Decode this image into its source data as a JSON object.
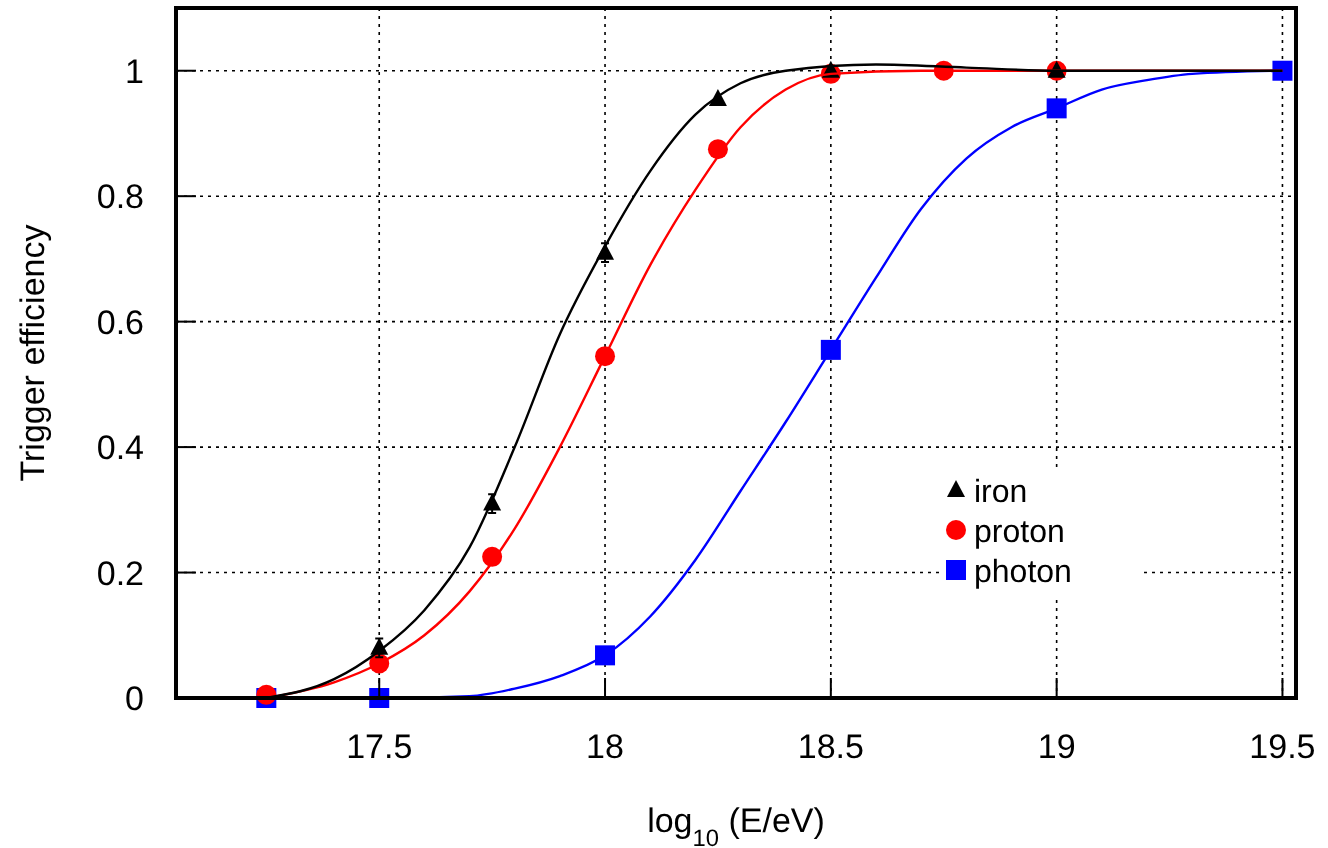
{
  "chart_data": {
    "type": "scatter",
    "xlabel": "log$_{10}$ (E/eV)",
    "ylabel": "Trigger efficiency",
    "xlim": [
      17.05,
      19.53
    ],
    "ylim": [
      0,
      1.1
    ],
    "xticks": [
      17.5,
      18,
      18.5,
      19,
      19.5
    ],
    "yticks": [
      0,
      0.2,
      0.4,
      0.6,
      0.8,
      1
    ],
    "grid": true,
    "legend": "bottom right",
    "series": [
      {
        "type": "line",
        "color": "#000000",
        "marker": "none",
        "x": [
          17.25,
          17.4,
          17.5,
          17.6,
          17.7,
          17.8,
          17.9,
          18.0,
          18.1,
          18.2,
          18.3,
          18.4,
          18.6,
          18.8,
          19.0,
          19.5
        ],
        "values": [
          0.0,
          0.03,
          0.075,
          0.14,
          0.24,
          0.4,
          0.58,
          0.72,
          0.84,
          0.93,
          0.98,
          1.0,
          1.01,
          1.005,
          1.0,
          1.0
        ]
      },
      {
        "type": "line",
        "color": "#ff0000",
        "marker": "none",
        "x": [
          17.25,
          17.4,
          17.5,
          17.6,
          17.7,
          17.8,
          17.9,
          18.0,
          18.1,
          18.2,
          18.3,
          18.4,
          18.5,
          18.7,
          19.5
        ],
        "values": [
          0.0,
          0.025,
          0.055,
          0.1,
          0.17,
          0.27,
          0.4,
          0.545,
          0.69,
          0.81,
          0.91,
          0.97,
          0.995,
          1.0,
          1.0
        ]
      },
      {
        "type": "line",
        "color": "#0000ff",
        "marker": "none",
        "x": [
          17.25,
          17.5,
          17.7,
          17.8,
          17.9,
          18.0,
          18.1,
          18.2,
          18.3,
          18.4,
          18.5,
          18.6,
          18.7,
          18.8,
          18.9,
          19.0,
          19.1,
          19.2,
          19.3,
          19.5
        ],
        "values": [
          0,
          0,
          0.003,
          0.015,
          0.035,
          0.068,
          0.13,
          0.22,
          0.33,
          0.44,
          0.555,
          0.67,
          0.78,
          0.86,
          0.91,
          0.94,
          0.97,
          0.985,
          0.995,
          1.0
        ]
      },
      {
        "name": "iron",
        "color": "#000000",
        "marker": "triangle",
        "x": [
          17.5,
          17.75,
          18,
          18.25,
          18.5,
          19
        ],
        "values": [
          0.08,
          0.31,
          0.71,
          0.955,
          1.0,
          1.0
        ],
        "errors": [
          0.015,
          0.015,
          0.015,
          null,
          null,
          null
        ]
      },
      {
        "name": "proton",
        "color": "#ff0000",
        "marker": "circle",
        "x": [
          17.25,
          17.5,
          17.75,
          18,
          18.25,
          18.5,
          18.75,
          19
        ],
        "values": [
          0.005,
          0.055,
          0.225,
          0.545,
          0.875,
          0.995,
          1.0,
          1.0
        ]
      },
      {
        "name": "photon",
        "color": "#0000ff",
        "marker": "square",
        "x": [
          17.25,
          17.5,
          18,
          18.5,
          19,
          19.5
        ],
        "values": [
          0,
          0,
          0.068,
          0.555,
          0.94,
          1.0
        ]
      }
    ]
  }
}
